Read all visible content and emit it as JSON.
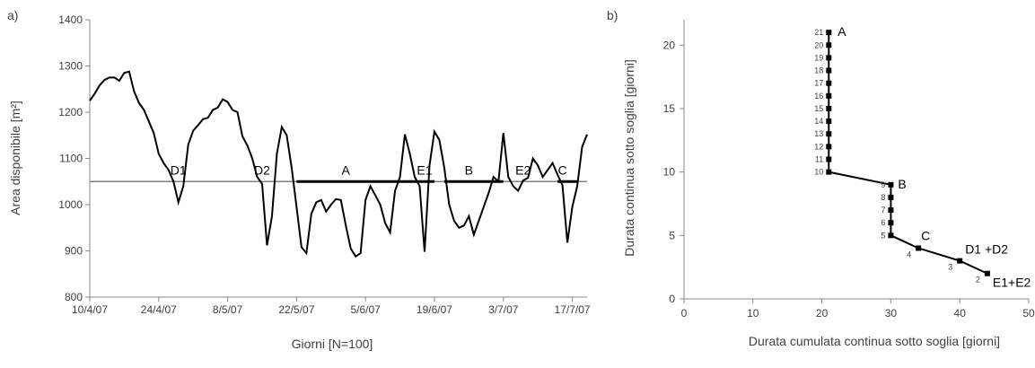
{
  "chart_data": [
    {
      "panel_label": "a)",
      "type": "line",
      "ylabel": "Area disponibile [m²]",
      "xlabel": "Giorni  [N=100]",
      "ylim": [
        800,
        1400
      ],
      "yticks": [
        "800",
        "900",
        "1000",
        "1100",
        "1200",
        "1300",
        "1400"
      ],
      "x_tick_labels": [
        "10/4/07",
        "24/4/07",
        "8/5/07",
        "22/5/07",
        "5/6/07",
        "19/6/07",
        "3/7/07",
        "17/7/07"
      ],
      "threshold": 1050,
      "grid": false,
      "series": [
        {
          "values": [
            1225,
            1240,
            1258,
            1270,
            1275,
            1275,
            1268,
            1285,
            1288,
            1245,
            1220,
            1205,
            1180,
            1155,
            1110,
            1090,
            1075,
            1050,
            1005,
            1040,
            1130,
            1160,
            1172,
            1185,
            1188,
            1205,
            1210,
            1228,
            1222,
            1205,
            1200,
            1148,
            1128,
            1100,
            1060,
            1045,
            912,
            975,
            1110,
            1168,
            1150,
            1080,
            995,
            908,
            895,
            980,
            1005,
            1010,
            985,
            1000,
            1012,
            1010,
            955,
            905,
            888,
            895,
            1010,
            1040,
            1020,
            1000,
            960,
            940,
            1030,
            1060,
            1152,
            1110,
            1060,
            1040,
            898,
            1085,
            1158,
            1140,
            1080,
            1000,
            965,
            950,
            955,
            975,
            935,
            965,
            995,
            1025,
            1060,
            1050,
            1155,
            1060,
            1040,
            1030,
            1052,
            1058,
            1100,
            1085,
            1060,
            1075,
            1090,
            1065,
            1042,
            918,
            995,
            1040,
            1125,
            1152
          ]
        }
      ],
      "annotations": [
        "D1",
        "D2",
        "A",
        "E1",
        "B",
        "E2",
        "C"
      ]
    },
    {
      "panel_label": "b)",
      "type": "line",
      "ylabel": "Durata continua sotto soglia [giorni]",
      "xlabel": "Durata cumulata continua sotto soglia [giorni]",
      "xlim": [
        0,
        50
      ],
      "ylim": [
        0,
        22
      ],
      "xticks": [
        "0",
        "10",
        "20",
        "30",
        "40",
        "50"
      ],
      "yticks": [
        "0",
        "5",
        "10",
        "15",
        "20"
      ],
      "grid": false,
      "series": [
        {
          "x": [
            44,
            40,
            34,
            30,
            30,
            30,
            30,
            30,
            21,
            21,
            21,
            21,
            21,
            21,
            21,
            21,
            21,
            21,
            21,
            21
          ],
          "y": [
            2,
            3,
            4,
            5,
            6,
            7,
            8,
            9,
            10,
            11,
            12,
            13,
            14,
            15,
            16,
            17,
            18,
            19,
            20,
            21
          ],
          "point_labels": [
            "2",
            "3",
            "4",
            "5",
            "6",
            "7",
            "8",
            "9",
            "10",
            "11",
            "12",
            "13",
            "14",
            "15",
            "16",
            "17",
            "18",
            "19",
            "20",
            "21"
          ]
        }
      ],
      "annotations": [
        "A",
        "B",
        "C",
        "D1 +D2",
        "E1+E2"
      ]
    }
  ]
}
